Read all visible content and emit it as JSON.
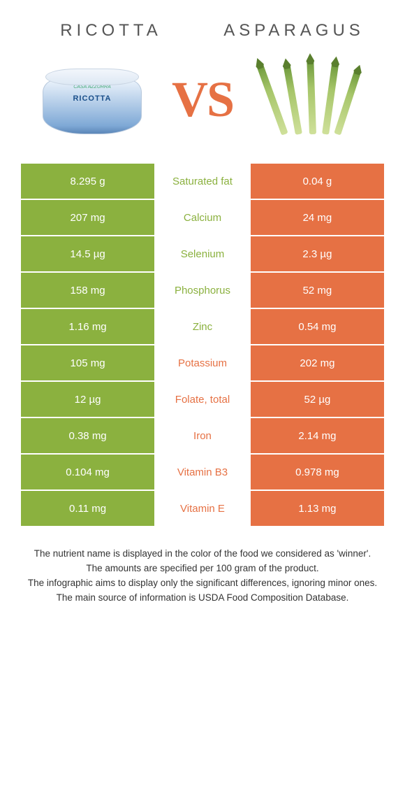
{
  "left_title": "RICOTTA",
  "right_title": "ASPARAGUS",
  "vs": "VS",
  "tub_brand": "CASA AZZURRA",
  "tub_label": "RICOTTA",
  "colors": {
    "left": "#8bb13f",
    "right": "#e67144",
    "left_text": "#8bb13f",
    "right_text": "#e67144",
    "row_border": "#ffffff"
  },
  "rows": [
    {
      "left": "8.295 g",
      "name": "Saturated fat",
      "right": "0.04 g",
      "winner": "left"
    },
    {
      "left": "207 mg",
      "name": "Calcium",
      "right": "24 mg",
      "winner": "left"
    },
    {
      "left": "14.5 µg",
      "name": "Selenium",
      "right": "2.3 µg",
      "winner": "left"
    },
    {
      "left": "158 mg",
      "name": "Phosphorus",
      "right": "52 mg",
      "winner": "left"
    },
    {
      "left": "1.16 mg",
      "name": "Zinc",
      "right": "0.54 mg",
      "winner": "left"
    },
    {
      "left": "105 mg",
      "name": "Potassium",
      "right": "202 mg",
      "winner": "right"
    },
    {
      "left": "12 µg",
      "name": "Folate, total",
      "right": "52 µg",
      "winner": "right"
    },
    {
      "left": "0.38 mg",
      "name": "Iron",
      "right": "2.14 mg",
      "winner": "right"
    },
    {
      "left": "0.104 mg",
      "name": "Vitamin B3",
      "right": "0.978 mg",
      "winner": "right"
    },
    {
      "left": "0.11 mg",
      "name": "Vitamin E",
      "right": "1.13 mg",
      "winner": "right"
    }
  ],
  "footer": [
    "The nutrient name is displayed in the color of the food we considered as 'winner'.",
    "The amounts are specified per 100 gram of the product.",
    "The infographic aims to display only the significant differences, ignoring minor ones.",
    "The main source of information is USDA Food Composition Database."
  ]
}
